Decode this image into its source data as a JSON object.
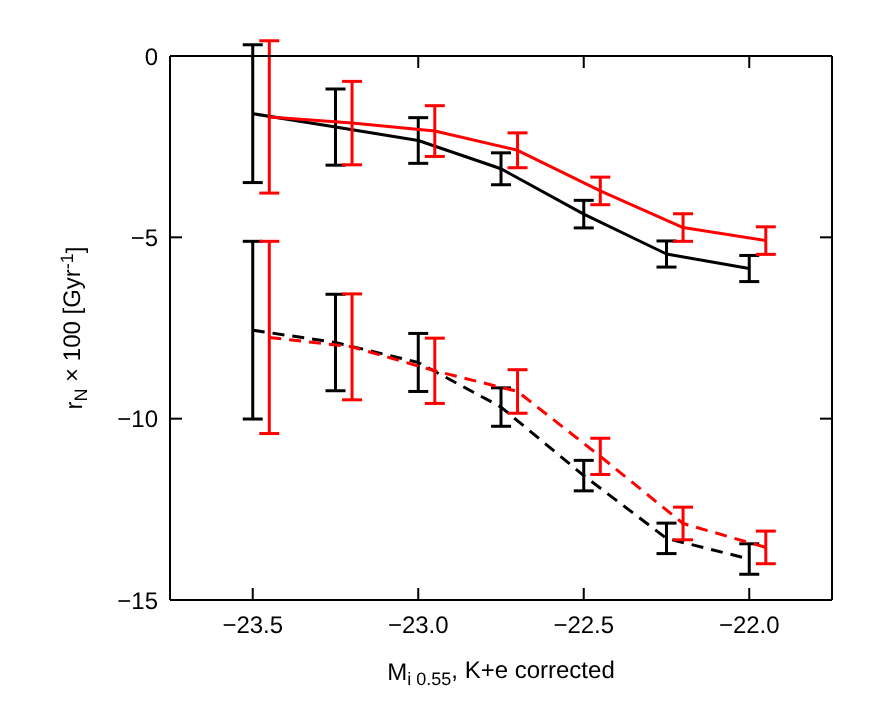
{
  "chart_data": {
    "type": "line",
    "xlabel": "M$_{i 0.55}$, K+e corrected",
    "ylabel": "r$_{N}$ × 100 [Gyr$^{-1}$]",
    "xlim": [
      -23.75,
      -21.75
    ],
    "xticks": [
      {
        "value": -23.5,
        "label": "−23.5"
      },
      {
        "value": -23.0,
        "label": "−23.0"
      },
      {
        "value": -22.5,
        "label": "−22.5"
      },
      {
        "value": -22.0,
        "label": "−22.0"
      }
    ],
    "ylim": [
      -15,
      0
    ],
    "yticks": [
      {
        "value": -15,
        "label": "−15"
      },
      {
        "value": -10,
        "label": "−10"
      },
      {
        "value": -5,
        "label": "−5"
      },
      0
    ],
    "grid": false,
    "legend": false,
    "marker": "none",
    "series": [
      {
        "color": "#000000",
        "line_style": "solid",
        "x": [
          -23.5,
          -23.25,
          -23.0,
          -22.75,
          -22.5,
          -22.25,
          -22.0
        ],
        "values": [
          -1.59,
          -1.96,
          -2.33,
          -3.11,
          -4.36,
          -5.46,
          -5.86
        ],
        "errors": [
          1.9,
          1.05,
          0.63,
          0.44,
          0.38,
          0.36,
          0.36
        ]
      },
      {
        "color": "#ff0000",
        "line_style": "solid",
        "x": [
          -23.45,
          -23.2,
          -22.95,
          -22.7,
          -22.45,
          -22.2,
          -21.95
        ],
        "values": [
          -1.68,
          -1.85,
          -2.07,
          -2.6,
          -3.72,
          -4.73,
          -5.09
        ],
        "errors": [
          2.1,
          1.15,
          0.7,
          0.48,
          0.38,
          0.38,
          0.38
        ]
      },
      {
        "color": "#000000",
        "line_style": "dashed",
        "x": [
          -23.5,
          -23.25,
          -23.0,
          -22.75,
          -22.5,
          -22.25,
          -22.0
        ],
        "values": [
          -7.56,
          -7.9,
          -8.45,
          -9.68,
          -11.57,
          -13.3,
          -13.87
        ],
        "errors": [
          2.45,
          1.33,
          0.8,
          0.53,
          0.42,
          0.42,
          0.42
        ]
      },
      {
        "color": "#ff0000",
        "line_style": "dashed",
        "x": [
          -23.45,
          -23.2,
          -22.95,
          -22.7,
          -22.45,
          -22.2,
          -21.95
        ],
        "values": [
          -7.76,
          -8.02,
          -8.68,
          -9.25,
          -11.04,
          -12.89,
          -13.55
        ],
        "errors": [
          2.65,
          1.46,
          0.9,
          0.6,
          0.5,
          0.45,
          0.45
        ]
      }
    ]
  }
}
